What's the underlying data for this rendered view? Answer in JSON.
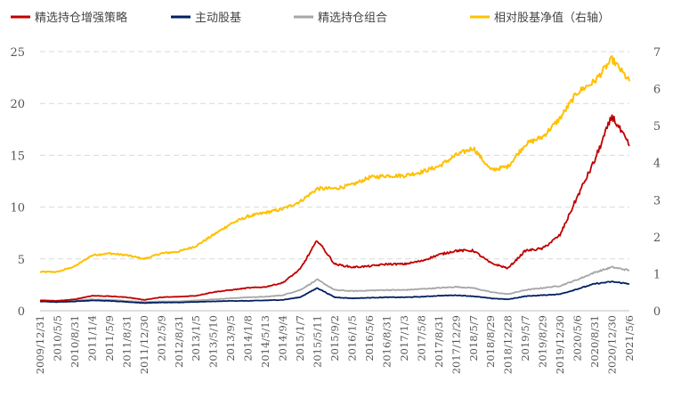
{
  "chart_data": {
    "type": "line",
    "title": "",
    "xlabel": "",
    "ylabel_left": "",
    "ylabel_right": "",
    "ylim_left": [
      0,
      25
    ],
    "ylim_right": [
      0,
      7
    ],
    "yticks_left": [
      "0",
      "5",
      "10",
      "15",
      "20",
      "25"
    ],
    "yticks_right": [
      "0",
      "1",
      "2",
      "3",
      "4",
      "5",
      "6",
      "7"
    ],
    "grid": "horizontal-dashed",
    "legend_position": "top",
    "x_labels": [
      "2009/12/31",
      "2010/5/5",
      "2010/8/31",
      "2011/1/4",
      "2011/5/9",
      "2011/8/31",
      "2011/12/30",
      "2012/5/9",
      "2012/8/31",
      "2013/1/5",
      "2013/5/10",
      "2013/9/5",
      "2014/1/8",
      "2014/5/13",
      "2014/9/4",
      "2015/1/7",
      "2015/5/11",
      "2015/9/2",
      "2016/1/5",
      "2016/5/6",
      "2016/8/31",
      "2017/1/3",
      "2017/5/8",
      "2017/8/31",
      "2017/12/29",
      "2018/5/7",
      "2018/8/29",
      "2018/12/28",
      "2019/5/7",
      "2019/8/29",
      "2019/12/30",
      "2020/5/6",
      "2020/8/31",
      "2020/12/30",
      "2021/5/6"
    ],
    "series": [
      {
        "name": "精选持仓增强策略",
        "axis": "left",
        "color": "#C00000",
        "values": [
          1.0,
          0.95,
          1.1,
          1.45,
          1.4,
          1.3,
          1.05,
          1.3,
          1.35,
          1.45,
          1.8,
          2.0,
          2.2,
          2.3,
          2.7,
          4.0,
          6.8,
          4.5,
          4.2,
          4.3,
          4.5,
          4.5,
          4.8,
          5.4,
          5.8,
          5.8,
          4.6,
          4.1,
          5.8,
          6.0,
          7.3,
          11.0,
          14.5,
          18.8,
          15.9
        ]
      },
      {
        "name": "主动股基",
        "axis": "left",
        "color": "#002060",
        "values": [
          0.9,
          0.85,
          0.9,
          1.0,
          0.95,
          0.85,
          0.75,
          0.8,
          0.8,
          0.85,
          0.9,
          0.95,
          0.95,
          1.0,
          1.05,
          1.3,
          2.2,
          1.3,
          1.2,
          1.25,
          1.3,
          1.3,
          1.35,
          1.45,
          1.5,
          1.4,
          1.2,
          1.1,
          1.4,
          1.5,
          1.6,
          2.1,
          2.6,
          2.8,
          2.6
        ]
      },
      {
        "name": "精选持仓组合",
        "axis": "left",
        "color": "#A6A6A6",
        "values": [
          1.0,
          0.95,
          1.0,
          1.1,
          1.05,
          0.95,
          0.85,
          0.9,
          0.9,
          1.0,
          1.1,
          1.2,
          1.3,
          1.35,
          1.5,
          2.0,
          3.0,
          2.0,
          1.9,
          1.95,
          2.0,
          2.0,
          2.1,
          2.2,
          2.3,
          2.2,
          1.8,
          1.6,
          2.0,
          2.2,
          2.4,
          3.0,
          3.7,
          4.2,
          3.9
        ]
      },
      {
        "name": "相对股基净值（右轴）",
        "axis": "right",
        "color": "#FFC000",
        "values": [
          1.05,
          1.05,
          1.2,
          1.5,
          1.55,
          1.5,
          1.4,
          1.55,
          1.6,
          1.75,
          2.05,
          2.35,
          2.55,
          2.65,
          2.75,
          2.95,
          3.3,
          3.3,
          3.4,
          3.6,
          3.65,
          3.65,
          3.75,
          3.9,
          4.2,
          4.4,
          3.8,
          3.9,
          4.5,
          4.7,
          5.2,
          5.9,
          6.2,
          6.8,
          6.2
        ]
      }
    ]
  }
}
